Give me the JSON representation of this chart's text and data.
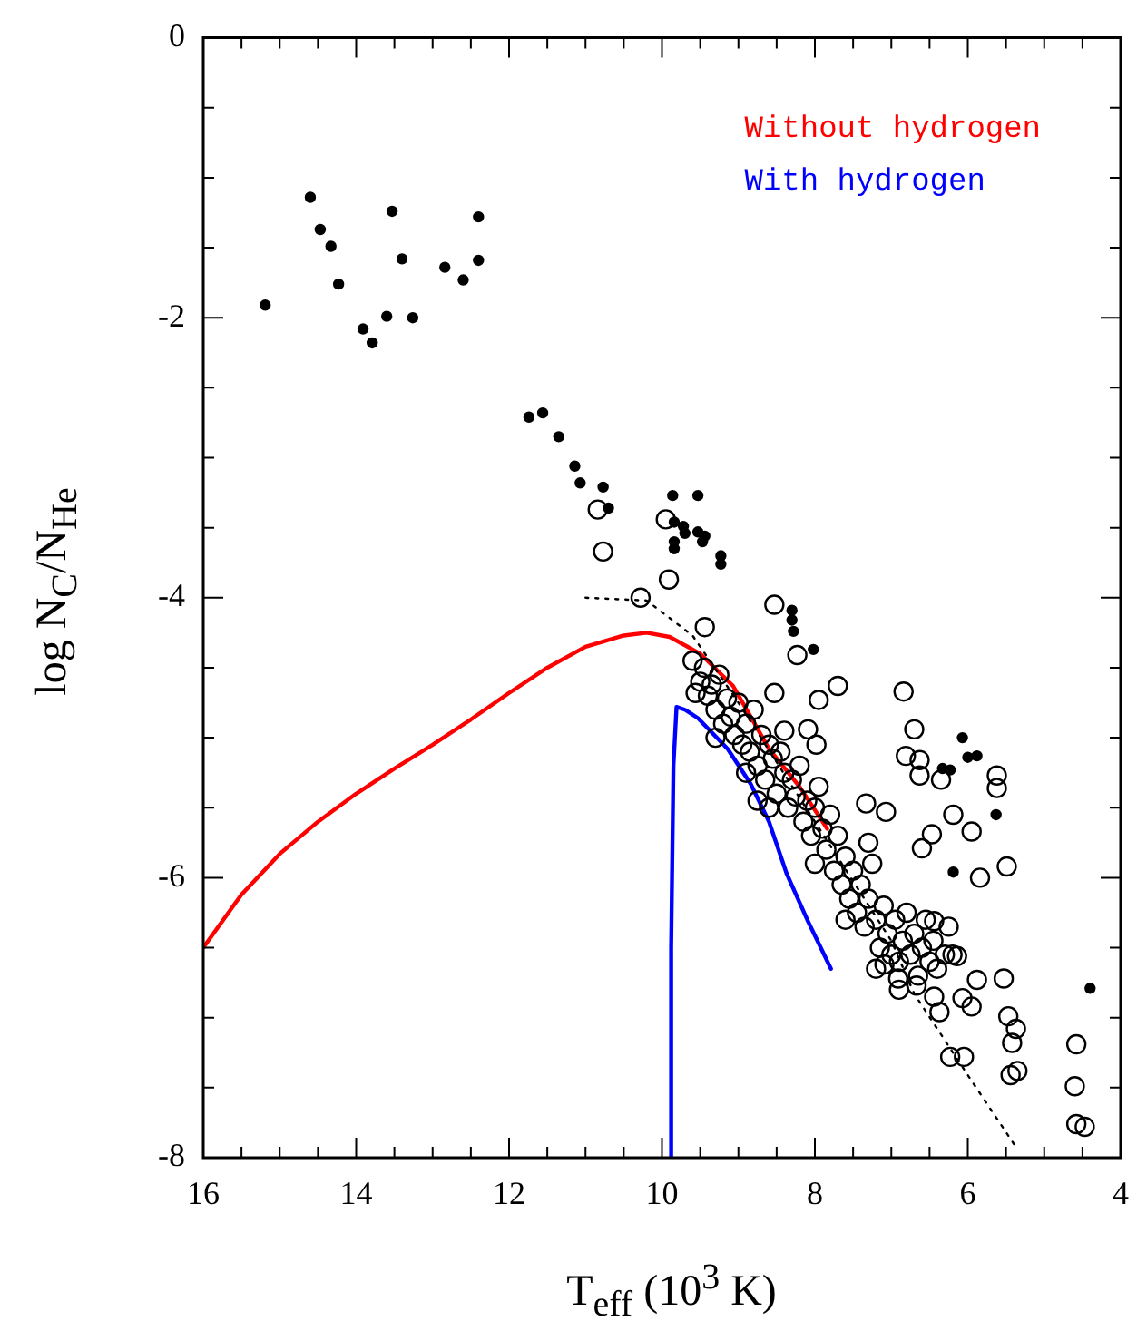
{
  "chart_data": {
    "type": "scatter",
    "xlabel": "T$_{eff}$ (10$^{3}$ K)",
    "ylabel": "log N$_{C}$/N$_{He}$",
    "xlim": [
      16,
      4
    ],
    "ylim": [
      -8,
      0
    ],
    "xticks": [
      16,
      {
        "value": 15.5,
        "label": null
      },
      {
        "value": 15,
        "label": null
      },
      {
        "value": 14.5,
        "label": null
      },
      14,
      {
        "value": 13.5,
        "label": null
      },
      {
        "value": 13,
        "label": null
      },
      {
        "value": 12.5,
        "label": null
      },
      12,
      {
        "value": 11.5,
        "label": null
      },
      {
        "value": 11,
        "label": null
      },
      {
        "value": 10.5,
        "label": null
      },
      10,
      {
        "value": 9.5,
        "label": null
      },
      {
        "value": 9,
        "label": null
      },
      {
        "value": 8.5,
        "label": null
      },
      8,
      {
        "value": 7.5,
        "label": null
      },
      {
        "value": 7,
        "label": null
      },
      {
        "value": 6.5,
        "label": null
      },
      6,
      {
        "value": 5.5,
        "label": null
      },
      {
        "value": 5,
        "label": null
      },
      {
        "value": 4.5,
        "label": null
      },
      4
    ],
    "yticks": [
      -8,
      {
        "value": -7.5,
        "label": null
      },
      {
        "value": -7,
        "label": null
      },
      {
        "value": -6.5,
        "label": null
      },
      -6,
      {
        "value": -5.5,
        "label": null
      },
      {
        "value": -5,
        "label": null
      },
      {
        "value": -4.5,
        "label": null
      },
      -4,
      {
        "value": -3.5,
        "label": null
      },
      {
        "value": -3,
        "label": null
      },
      {
        "value": -2.5,
        "label": null
      },
      -2,
      {
        "value": -1.5,
        "label": null
      },
      {
        "value": -1,
        "label": null
      },
      {
        "value": -0.5,
        "label": null
      },
      0
    ],
    "legend": "top right",
    "series": [
      {
        "color": "#000000",
        "marker": "circle",
        "x": [
          15.19,
          14.6,
          14.47,
          14.33,
          14.23,
          13.91,
          13.79,
          13.6,
          13.53,
          13.4,
          13.26,
          12.84,
          12.6,
          12.4,
          12.4,
          11.74,
          11.56,
          11.35,
          11.14,
          11.07,
          10.77,
          10.7,
          9.86,
          9.84,
          9.72,
          9.7,
          9.84,
          9.84,
          9.53,
          9.44,
          9.47,
          9.23,
          9.23,
          9.53,
          8.3,
          8.3,
          8.28,
          8.02,
          6.07,
          6.0,
          5.88,
          6.33,
          6.23,
          5.63,
          6.19,
          4.4
        ],
        "values": [
          -1.91,
          -1.14,
          -1.37,
          -1.49,
          -1.76,
          -2.08,
          -2.18,
          -1.99,
          -1.24,
          -1.58,
          -2.0,
          -1.64,
          -1.73,
          -1.28,
          -1.59,
          -2.71,
          -2.68,
          -2.85,
          -3.06,
          -3.18,
          -3.21,
          -3.36,
          -3.27,
          -3.46,
          -3.49,
          -3.54,
          -3.6,
          -3.65,
          -3.53,
          -3.56,
          -3.6,
          -3.7,
          -3.76,
          -3.27,
          -4.09,
          -4.16,
          -4.24,
          -4.37,
          -5.0,
          -5.14,
          -5.13,
          -5.22,
          -5.23,
          -5.55,
          -5.96,
          -6.79
        ]
      },
      {
        "color": "#000000",
        "marker": "circle",
        "x": [
          10.84,
          10.77,
          10.28,
          9.95,
          9.91,
          9.44,
          8.53,
          8.23,
          7.7,
          9.56,
          7.95,
          8.09,
          7.98,
          8.53,
          6.84,
          6.7,
          6.81,
          6.63,
          6.63,
          6.35,
          5.62,
          5.62,
          7.33,
          7.07,
          6.19,
          5.95,
          6.47,
          6.6,
          5.49,
          5.84,
          6.44,
          6.14,
          5.88,
          5.53,
          6.07,
          5.95,
          6.44,
          6.37,
          5.47,
          5.37,
          5.42,
          6.23,
          6.05,
          5.44,
          5.35,
          4.58,
          4.6,
          4.58,
          4.47,
          7.09,
          6.91,
          6.67,
          9.6,
          9.5,
          9.45,
          9.4,
          9.35,
          9.3,
          9.25,
          9.2,
          9.15,
          9.1,
          9.05,
          9.0,
          8.95,
          8.9,
          8.85,
          8.8,
          8.75,
          8.7,
          8.65,
          8.6,
          8.55,
          8.5,
          8.45,
          8.4,
          8.35,
          8.3,
          8.25,
          8.2,
          8.15,
          8.1,
          8.05,
          8.0,
          7.95,
          7.9,
          7.85,
          7.8,
          7.75,
          7.7,
          7.65,
          7.6,
          7.55,
          7.5,
          7.45,
          7.4,
          7.35,
          7.3,
          7.25,
          7.2,
          7.15,
          7.1,
          7.05,
          7.0,
          6.95,
          6.9,
          6.85,
          6.8,
          6.75,
          6.7,
          6.65,
          6.6,
          6.55,
          6.5,
          6.45,
          6.4,
          6.3,
          6.25,
          6.2,
          8.9,
          8.6,
          8.4,
          8.0,
          7.6,
          7.2,
          6.9,
          9.3,
          8.75,
          7.3
        ],
        "values": [
          -3.37,
          -3.67,
          -4.0,
          -3.44,
          -3.87,
          -4.21,
          -4.05,
          -4.41,
          -4.63,
          -4.68,
          -4.73,
          -4.94,
          -5.05,
          -4.68,
          -4.67,
          -4.94,
          -5.13,
          -5.16,
          -5.27,
          -5.3,
          -5.27,
          -5.36,
          -5.47,
          -5.53,
          -5.55,
          -5.67,
          -5.69,
          -5.79,
          -5.92,
          -6.0,
          -6.31,
          -6.56,
          -6.73,
          -6.72,
          -6.86,
          -6.92,
          -6.85,
          -6.96,
          -6.99,
          -7.08,
          -7.18,
          -7.28,
          -7.28,
          -7.41,
          -7.38,
          -7.19,
          -7.49,
          -7.76,
          -7.78,
          -6.62,
          -6.72,
          -6.77,
          -4.45,
          -4.6,
          -4.5,
          -4.7,
          -4.62,
          -4.8,
          -4.55,
          -4.9,
          -4.72,
          -4.85,
          -4.98,
          -4.75,
          -5.05,
          -4.9,
          -5.1,
          -4.8,
          -5.2,
          -4.98,
          -5.3,
          -5.05,
          -5.15,
          -5.4,
          -5.1,
          -5.25,
          -5.5,
          -5.3,
          -5.42,
          -5.2,
          -5.6,
          -5.45,
          -5.7,
          -5.5,
          -5.35,
          -5.65,
          -5.8,
          -5.55,
          -5.95,
          -5.7,
          -6.05,
          -5.85,
          -6.15,
          -5.95,
          -6.25,
          -6.05,
          -6.35,
          -6.15,
          -5.9,
          -6.3,
          -6.5,
          -6.2,
          -6.4,
          -6.55,
          -6.3,
          -6.6,
          -6.45,
          -6.25,
          -6.55,
          -6.4,
          -6.7,
          -6.5,
          -6.3,
          -6.6,
          -6.45,
          -6.65,
          -6.55,
          -6.35,
          -6.55,
          -5.25,
          -5.5,
          -4.95,
          -5.9,
          -6.3,
          -6.65,
          -6.8,
          -5.0,
          -5.45,
          -5.75
        ]
      },
      {
        "type": "line",
        "color": "#000000",
        "line_style": "dotted",
        "x": [
          11.0,
          10.2,
          9.6,
          9.0,
          8.0,
          7.0,
          6.7,
          6.0,
          5.35
        ],
        "values": [
          -4.0,
          -4.02,
          -4.27,
          -4.75,
          -5.6,
          -6.45,
          -6.83,
          -7.41,
          -7.94
        ]
      },
      {
        "type": "line",
        "name": "Without hydrogen",
        "color": "#ff0000",
        "line_style": "solid",
        "x": [
          16,
          15.5,
          15,
          14.5,
          14,
          13.5,
          13,
          12.5,
          12,
          11.5,
          11,
          10.5,
          10.2,
          9.9,
          9.5,
          9.07,
          8.6,
          8.2,
          7.84
        ],
        "values": [
          -6.5,
          -6.12,
          -5.83,
          -5.6,
          -5.4,
          -5.22,
          -5.05,
          -4.87,
          -4.68,
          -4.5,
          -4.35,
          -4.27,
          -4.25,
          -4.28,
          -4.4,
          -4.63,
          -5.08,
          -5.35,
          -5.65
        ]
      },
      {
        "type": "line",
        "name": "With hydrogen",
        "color": "#0000ff",
        "line_style": "solid",
        "x": [
          9.88,
          9.88,
          9.85,
          9.81,
          9.7,
          9.53,
          9.14,
          8.84,
          8.6,
          8.37,
          8.1,
          7.79
        ],
        "values": [
          -8,
          -6.5,
          -5.2,
          -4.78,
          -4.8,
          -4.86,
          -5.08,
          -5.33,
          -5.6,
          -5.97,
          -6.3,
          -6.65
        ]
      }
    ]
  }
}
